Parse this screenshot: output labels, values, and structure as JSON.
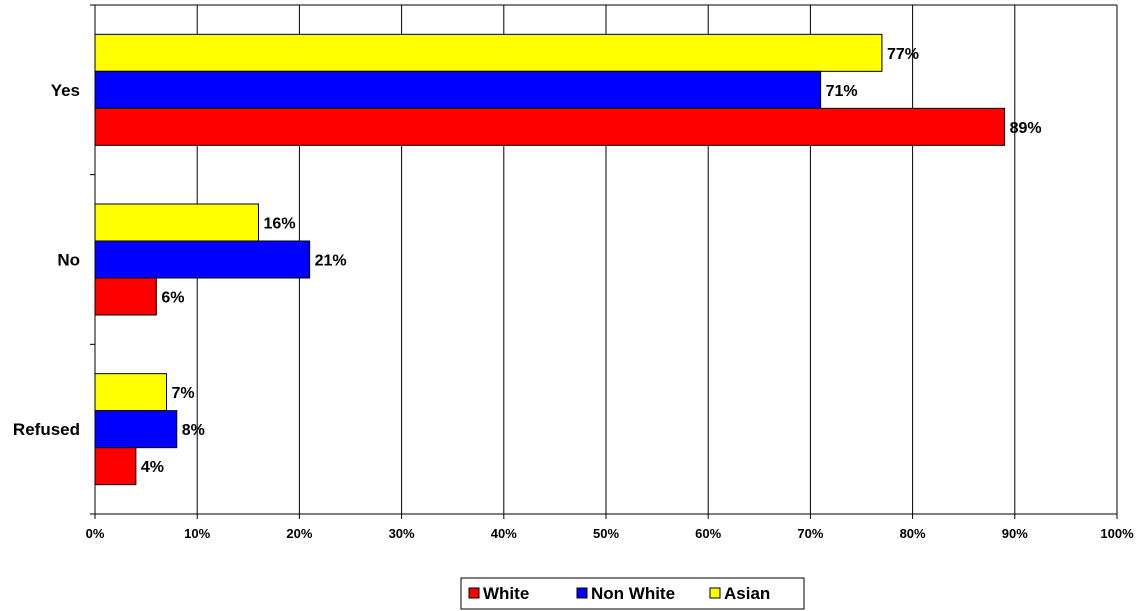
{
  "chart_data": {
    "type": "bar",
    "orientation": "horizontal",
    "categories": [
      "Yes",
      "No",
      "Refused"
    ],
    "series": [
      {
        "name": "White",
        "color": "#ff0000",
        "values": [
          89,
          6,
          4
        ],
        "labels": [
          "89%",
          "6%",
          "4%"
        ]
      },
      {
        "name": "Non White",
        "color": "#0000ff",
        "values": [
          71,
          21,
          8
        ],
        "labels": [
          "71%",
          "21%",
          "8%"
        ]
      },
      {
        "name": "Asian",
        "color": "#ffff00",
        "values": [
          77,
          16,
          7
        ],
        "labels": [
          "77%",
          "16%",
          "7%"
        ]
      }
    ],
    "xlim": [
      0,
      100
    ],
    "x_ticks": [
      0,
      10,
      20,
      30,
      40,
      50,
      60,
      70,
      80,
      90,
      100
    ],
    "x_tick_labels": [
      "0%",
      "10%",
      "20%",
      "30%",
      "40%",
      "50%",
      "60%",
      "70%",
      "80%",
      "90%",
      "100%"
    ],
    "grid": true,
    "legend_position": "bottom-center",
    "legend_order": [
      "White",
      "Non White",
      "Asian"
    ]
  }
}
